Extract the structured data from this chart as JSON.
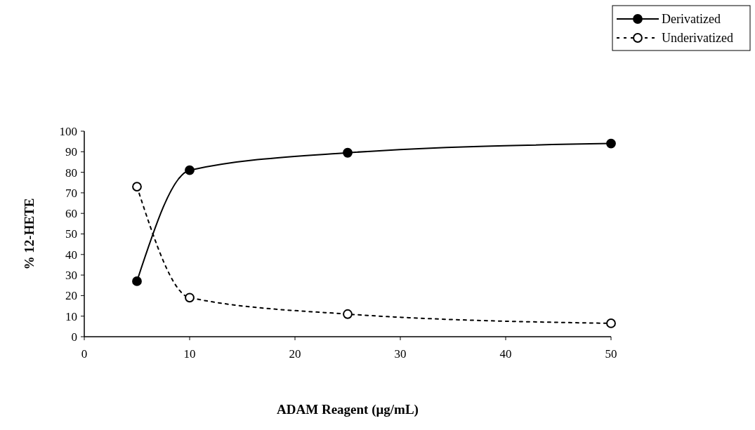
{
  "chart_data": {
    "type": "line",
    "xlabel": "ADAM Reagent (μg/mL)",
    "ylabel": "% 12-HETE",
    "x": [
      5,
      10,
      25,
      50
    ],
    "series": [
      {
        "name": "Derivatized",
        "color": "#000000",
        "values": [
          27,
          81,
          89.5,
          94
        ],
        "line_style": "solid"
      },
      {
        "name": "Underivatized",
        "color": "#000000",
        "values": [
          73,
          19,
          11,
          6.5
        ],
        "line_style": "dotted"
      }
    ],
    "xlim": [
      0,
      50
    ],
    "xticks": [
      0,
      10,
      20,
      30,
      40,
      50
    ],
    "ylim": [
      0,
      100
    ],
    "yticks": [
      0,
      10,
      20,
      30,
      40,
      50,
      60,
      70,
      80,
      90,
      100
    ],
    "marker": "circle",
    "legend": "top right",
    "grid": false
  }
}
